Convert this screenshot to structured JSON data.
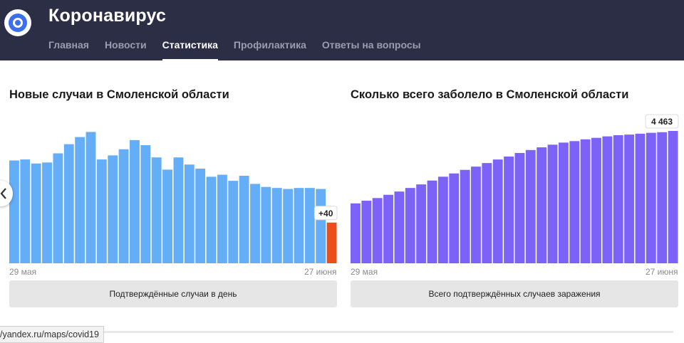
{
  "app": {
    "title": "Коронавирус"
  },
  "nav": {
    "items": [
      "Главная",
      "Новости",
      "Статистика",
      "Профилактика",
      "Ответы на вопросы"
    ],
    "active_index": 2
  },
  "left_card": {
    "title": "Новые случаи в Смоленской области",
    "date_start": "29 мая",
    "date_end": "27 июня",
    "last_label": "+40",
    "legend": "Подтверждённые случаи в день"
  },
  "right_card": {
    "title": "Сколько всего заболело в Смоленской области",
    "date_start": "29 мая",
    "date_end": "27 июня",
    "last_label": "4 463",
    "legend": "Всего подтверждённых случаев заражения"
  },
  "status_bar": {
    "url": "/yandex.ru/maps/covid19"
  },
  "colors": {
    "header": "#2c2e45",
    "new_cases_bar": "#64aef7",
    "new_cases_last_bar": "#ea4e1b",
    "total_bar": "#7d62f7"
  },
  "chart_data": [
    {
      "type": "bar",
      "x_start": "29 мая",
      "x_end": "27 июня",
      "values": [
        101,
        102,
        98,
        99,
        108,
        117,
        124,
        129,
        102,
        106,
        112,
        121,
        116,
        104,
        92,
        104,
        97,
        93,
        85,
        87,
        81,
        86,
        78,
        75,
        74,
        73,
        74,
        74,
        73,
        40
      ],
      "value_scale_note": "",
      "highlight_last": true,
      "last_value_label": "+40"
    },
    {
      "type": "bar",
      "x_start": "29 мая",
      "x_end": "27 июня",
      "values": [
        2020,
        2110,
        2200,
        2310,
        2420,
        2540,
        2660,
        2790,
        2920,
        3030,
        3150,
        3260,
        3380,
        3500,
        3600,
        3720,
        3820,
        3910,
        4000,
        4070,
        4120,
        4180,
        4230,
        4280,
        4320,
        4340,
        4370,
        4400,
        4420,
        4463
      ],
      "last_value_label": "4 463"
    }
  ]
}
